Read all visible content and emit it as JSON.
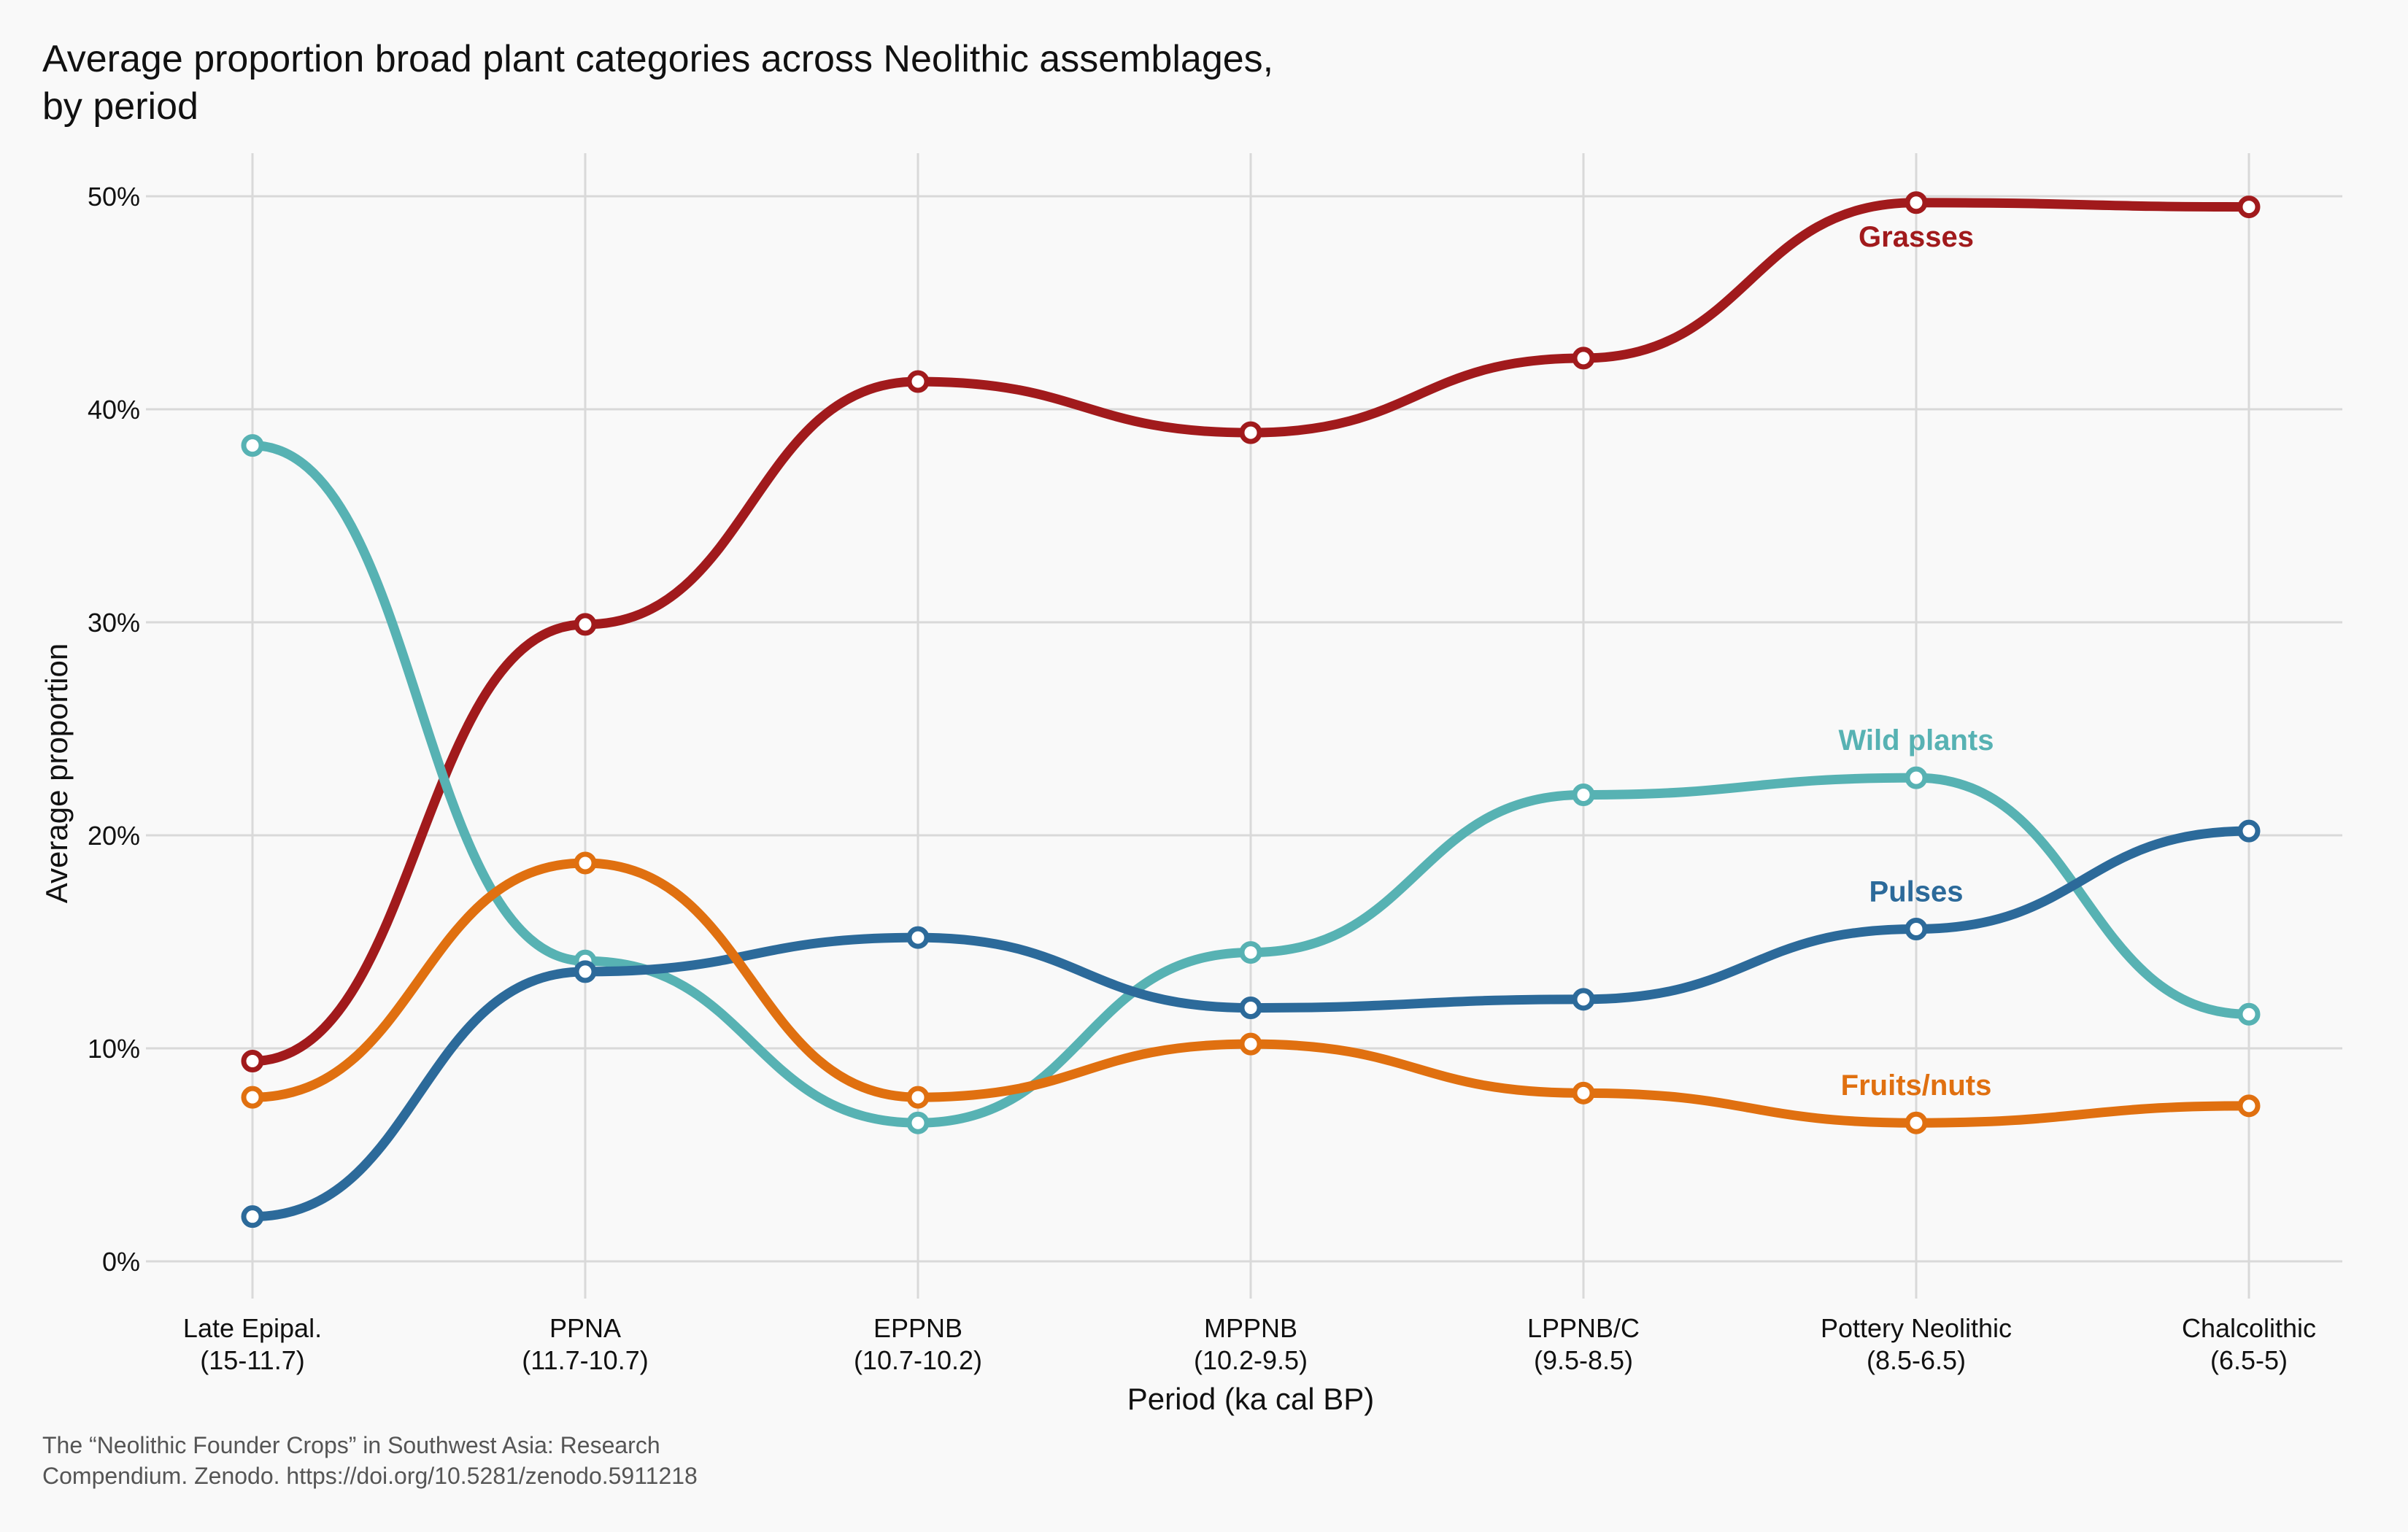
{
  "chart_data": {
    "type": "line",
    "title_line1": "Average proportion broad plant categories across Neolithic assemblages,",
    "title_line2": "by period",
    "ylabel": "Average proportion",
    "xlabel": "Period (ka cal BP)",
    "caption_line1": "The “Neolithic Founder Crops” in Southwest Asia: Research",
    "caption_line2": "Compendium. Zenodo. https://doi.org/10.5281/zenodo.5911218",
    "ylim": [
      0,
      50
    ],
    "y_ticks": [
      0,
      10,
      20,
      30,
      40,
      50
    ],
    "y_tick_labels": [
      "0%",
      "10%",
      "20%",
      "30%",
      "40%",
      "50%"
    ],
    "grid": true,
    "categories": [
      {
        "name": "Late Epipal.",
        "range": "(15-11.7)"
      },
      {
        "name": "PPNA",
        "range": "(11.7-10.7)"
      },
      {
        "name": "EPPNB",
        "range": "(10.7-10.2)"
      },
      {
        "name": "MPPNB",
        "range": "(10.2-9.5)"
      },
      {
        "name": "LPPNB/C",
        "range": "(9.5-8.5)"
      },
      {
        "name": "Pottery Neolithic",
        "range": "(8.5-6.5)"
      },
      {
        "name": "Chalcolithic",
        "range": "(6.5-5)"
      }
    ],
    "series": [
      {
        "name": "Grasses",
        "color": "#a11a1c",
        "values": [
          9.4,
          29.9,
          41.3,
          38.9,
          42.4,
          49.7,
          49.5
        ],
        "label_at": 5,
        "label_position": "below"
      },
      {
        "name": "Wild plants",
        "color": "#57b2b3",
        "values": [
          38.3,
          14.1,
          6.5,
          14.5,
          21.9,
          22.7,
          11.6
        ],
        "label_at": 5,
        "label_position": "above"
      },
      {
        "name": "Pulses",
        "color": "#2c6a9a",
        "values": [
          2.1,
          13.6,
          15.2,
          11.9,
          12.3,
          15.6,
          20.2
        ],
        "label_at": 5,
        "label_position": "above"
      },
      {
        "name": "Fruits/nuts",
        "color": "#e07010",
        "values": [
          7.7,
          18.7,
          7.7,
          10.2,
          7.9,
          6.5,
          7.3
        ],
        "label_at": 5,
        "label_position": "above"
      }
    ]
  }
}
